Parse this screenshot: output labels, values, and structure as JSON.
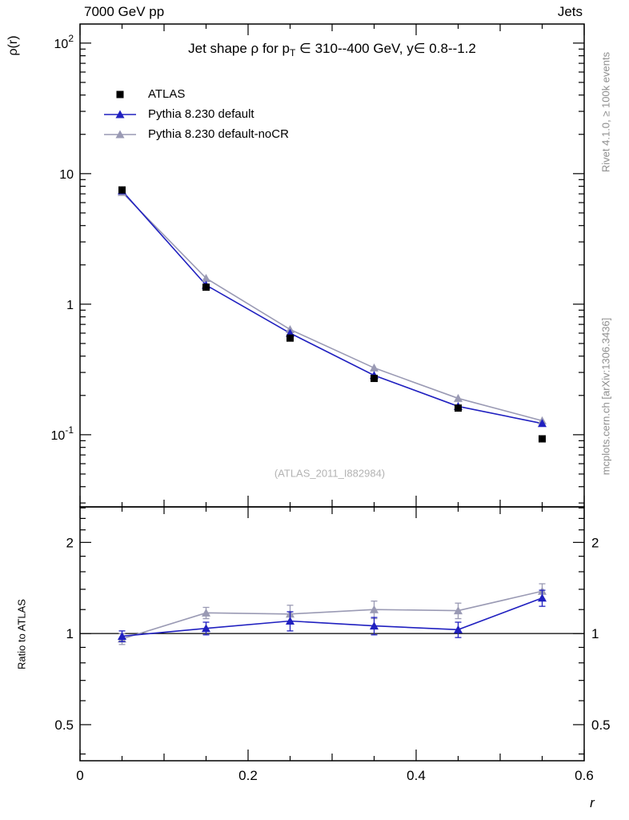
{
  "header": {
    "left": "7000 GeV pp",
    "right": "Jets"
  },
  "title_parts": {
    "prefix": "Jet shape ρ for p",
    "sub": "T",
    "suffix": " ∈ 310--400 GeV, y∈ 0.8--1.2"
  },
  "watermark": "(ATLAS_2011_I882984)",
  "side_texts": {
    "top": "Rivet 4.1.0, ≥ 100k events",
    "bottom": "mcplots.cern.ch [arXiv:1306.3436]"
  },
  "chart_data": {
    "type": "line",
    "title": "Jet shape ρ for p_T ∈ 310--400 GeV, y∈ 0.8--1.2",
    "xlabel": "r",
    "ylabel": "ρ(r)",
    "ratio_ylabel": "Ratio to ATLAS",
    "grid": false,
    "legend_position": "top-left",
    "x": [
      0.05,
      0.15,
      0.25,
      0.35,
      0.45,
      0.55
    ],
    "series": [
      {
        "name": "ATLAS",
        "marker": "square",
        "line": false,
        "color": "#000000",
        "values": [
          7.5,
          1.35,
          0.55,
          0.27,
          0.16,
          0.093
        ]
      },
      {
        "name": "Pythia 8.230 default",
        "marker": "triangle",
        "line": true,
        "color": "#2020c0",
        "values": [
          7.4,
          1.4,
          0.6,
          0.285,
          0.165,
          0.122
        ]
      },
      {
        "name": "Pythia 8.230 default-noCR",
        "marker": "triangle",
        "line": true,
        "color": "#9a9ab4",
        "values": [
          7.2,
          1.58,
          0.64,
          0.325,
          0.19,
          0.128
        ]
      }
    ],
    "ratio": {
      "reference_line": 1,
      "series": [
        {
          "name": "Pythia 8.230 default",
          "marker": "triangle",
          "color": "#2020c0",
          "values": [
            0.98,
            1.04,
            1.1,
            1.06,
            1.03,
            1.31
          ],
          "errors": [
            0.04,
            0.05,
            0.08,
            0.07,
            0.06,
            0.08
          ]
        },
        {
          "name": "Pythia 8.230 default-noCR",
          "marker": "triangle",
          "color": "#9a9ab4",
          "values": [
            0.96,
            1.17,
            1.16,
            1.2,
            1.19,
            1.38
          ],
          "errors": [
            0.04,
            0.05,
            0.08,
            0.08,
            0.07,
            0.08
          ]
        }
      ]
    },
    "xlim": [
      0,
      0.6
    ],
    "ylim_main": [
      0.028,
      140
    ],
    "ylim_ratio": [
      0.38,
      2.62
    ],
    "xticks": {
      "major": [
        0,
        0.2,
        0.4,
        0.6
      ],
      "labels": [
        "0",
        "0.2",
        "0.4",
        "0.6"
      ],
      "minor_step": 0.05
    },
    "yticks_main": {
      "values": [
        100,
        10,
        1,
        0.1
      ],
      "labels": [
        "10^2",
        "10",
        "1",
        "10^-1"
      ]
    },
    "yticks_ratio": {
      "values": [
        2,
        1,
        0.5
      ],
      "labels": [
        "2",
        "1",
        "0.5"
      ],
      "minor": [
        0.4,
        0.6,
        0.7,
        0.8,
        0.9,
        1.2,
        1.4,
        1.6,
        1.8,
        2.2,
        2.4,
        2.6
      ]
    }
  }
}
